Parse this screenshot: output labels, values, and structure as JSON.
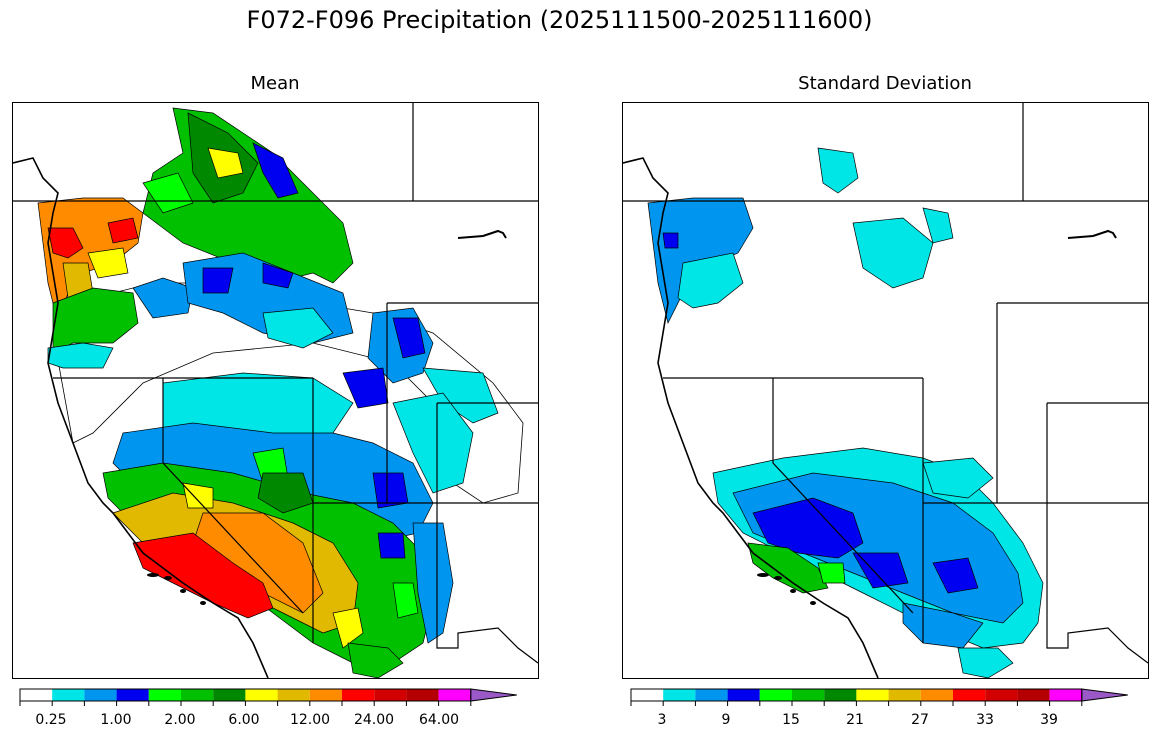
{
  "title": "F072-F096 Precipitation (2025111500-2025111600)",
  "panels": {
    "mean": {
      "title": "Mean",
      "colorbar": {
        "colors": [
          "#ffffff",
          "#00e5e5",
          "#0096f0",
          "#0000f0",
          "#00ff00",
          "#00c000",
          "#008800",
          "#ffff00",
          "#e1b900",
          "#ff8c00",
          "#ff0000",
          "#d20000",
          "#b40000",
          "#ff00ff",
          "#9b59c8"
        ],
        "tick_labels": [
          "0.25",
          "1.00",
          "2.00",
          "6.00",
          "12.00",
          "24.00",
          "64.00"
        ]
      }
    },
    "sd": {
      "title": "Standard Deviation",
      "colorbar": {
        "colors": [
          "#ffffff",
          "#00e5e5",
          "#0096f0",
          "#0000f0",
          "#00ff00",
          "#00c000",
          "#008800",
          "#ffff00",
          "#e1b900",
          "#ff8c00",
          "#ff0000",
          "#d20000",
          "#b40000",
          "#ff00ff",
          "#9b59c8"
        ],
        "tick_labels": [
          "3",
          "9",
          "15",
          "21",
          "27",
          "33",
          "39"
        ]
      }
    }
  }
}
